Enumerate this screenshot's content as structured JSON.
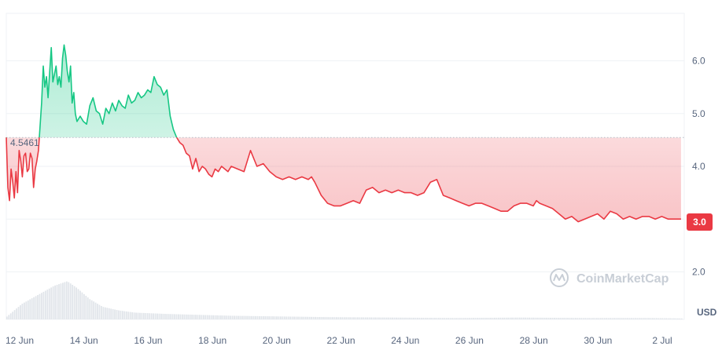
{
  "chart_data": {
    "type": "area",
    "currency_label": "USD",
    "baseline": 4.5461,
    "baseline_label": "4.5461",
    "last_price_label": "3.0",
    "watermark": "CoinMarketCap",
    "colors": {
      "up": "#16c784",
      "down": "#ea3943",
      "grid": "#eff2f5",
      "text": "#58667e",
      "volume": "#e1e5ea"
    },
    "yticks": [
      2.0,
      3.0,
      4.0,
      5.0,
      6.0
    ],
    "ytick_labels": [
      "2.0",
      "",
      "4.0",
      "5.0",
      "6.0"
    ],
    "ylim": [
      1.1,
      6.9
    ],
    "xlim": [
      0,
      21.1
    ],
    "xticks": [
      0,
      2,
      4,
      6,
      8,
      10,
      12,
      14,
      16,
      18,
      20
    ],
    "xtick_labels": [
      "12 Jun",
      "14 Jun",
      "16 Jun",
      "18 Jun",
      "20 Jun",
      "22 Jun",
      "24 Jun",
      "26 Jun",
      "28 Jun",
      "30 Jun",
      "2 Jul"
    ],
    "series": [
      {
        "x": [
          0,
          0.05,
          0.1,
          0.15,
          0.2,
          0.25,
          0.3,
          0.35,
          0.4,
          0.45,
          0.5,
          0.55,
          0.6,
          0.65,
          0.7,
          0.75,
          0.8,
          0.85,
          0.9,
          0.95,
          1.0,
          1.05,
          1.1,
          1.15,
          1.2,
          1.25,
          1.3,
          1.35,
          1.4,
          1.45,
          1.5,
          1.55,
          1.6,
          1.65,
          1.7,
          1.75,
          1.8,
          1.85,
          1.9,
          1.95,
          2.0,
          2.05,
          2.1,
          2.15,
          2.2,
          2.25,
          2.3,
          2.4,
          2.5,
          2.6,
          2.7,
          2.8,
          2.9,
          3.0,
          3.1,
          3.2,
          3.3,
          3.4,
          3.5,
          3.6,
          3.7,
          3.8,
          3.9,
          4.0,
          4.1,
          4.2,
          4.3,
          4.4,
          4.5,
          4.6,
          4.7,
          4.8,
          4.9,
          5.0,
          5.1,
          5.2,
          5.3,
          5.4,
          5.5,
          5.6,
          5.7,
          5.8,
          5.9,
          6.0,
          6.1,
          6.2,
          6.3,
          6.4,
          6.5,
          6.6,
          6.7,
          6.8,
          6.9,
          7.0,
          7.2,
          7.4,
          7.6,
          7.8,
          8.0,
          8.2,
          8.4,
          8.6,
          8.8,
          9.0,
          9.2,
          9.4,
          9.5,
          9.6,
          9.8,
          10.0,
          10.2,
          10.4,
          10.6,
          10.8,
          11.0,
          11.2,
          11.4,
          11.6,
          11.8,
          12.0,
          12.2,
          12.4,
          12.6,
          12.8,
          13.0,
          13.2,
          13.4,
          13.6,
          13.8,
          14.0,
          14.2,
          14.4,
          14.6,
          14.8,
          15.0,
          15.2,
          15.4,
          15.6,
          15.8,
          16.0,
          16.2,
          16.4,
          16.5,
          16.6,
          16.8,
          17.0,
          17.2,
          17.4,
          17.6,
          17.8,
          18.0,
          18.2,
          18.4,
          18.6,
          18.8,
          19.0,
          19.2,
          19.4,
          19.6,
          19.8,
          20.0,
          20.2,
          20.4,
          20.6,
          20.8,
          21.0
        ],
        "y": [
          4.55,
          3.6,
          3.35,
          3.95,
          3.7,
          3.4,
          3.9,
          3.5,
          4.3,
          4.1,
          3.8,
          4.2,
          4.25,
          3.9,
          3.95,
          4.25,
          4.15,
          3.6,
          3.95,
          4.1,
          4.3,
          4.75,
          5.2,
          5.9,
          5.5,
          5.7,
          5.3,
          5.8,
          6.25,
          5.6,
          5.75,
          5.9,
          5.55,
          5.7,
          5.5,
          6.05,
          6.3,
          6.1,
          5.8,
          5.6,
          5.9,
          5.2,
          5.4,
          5.0,
          4.85,
          4.9,
          4.95,
          4.85,
          4.8,
          5.15,
          5.3,
          5.05,
          5.0,
          4.8,
          5.1,
          5.0,
          5.2,
          5.05,
          5.25,
          5.15,
          5.1,
          5.35,
          5.2,
          5.25,
          5.4,
          5.3,
          5.35,
          5.45,
          5.4,
          5.7,
          5.55,
          5.5,
          5.35,
          5.45,
          4.95,
          4.7,
          4.55,
          4.45,
          4.4,
          4.25,
          4.2,
          3.95,
          4.15,
          3.9,
          4.0,
          3.95,
          3.85,
          3.8,
          3.95,
          3.9,
          4.0,
          3.95,
          3.9,
          4.0,
          3.95,
          3.9,
          4.3,
          4.0,
          4.05,
          3.9,
          3.8,
          3.75,
          3.8,
          3.75,
          3.8,
          3.75,
          3.8,
          3.7,
          3.45,
          3.3,
          3.25,
          3.25,
          3.3,
          3.35,
          3.3,
          3.55,
          3.6,
          3.5,
          3.55,
          3.5,
          3.55,
          3.5,
          3.5,
          3.45,
          3.5,
          3.7,
          3.75,
          3.45,
          3.4,
          3.35,
          3.3,
          3.25,
          3.3,
          3.3,
          3.25,
          3.2,
          3.15,
          3.15,
          3.25,
          3.3,
          3.3,
          3.25,
          3.35,
          3.3,
          3.25,
          3.2,
          3.1,
          3.0,
          3.05,
          2.95,
          3.0,
          3.05,
          3.1,
          3.0,
          3.15,
          3.1,
          3.0,
          3.05,
          3.0,
          3.05,
          3.05,
          3.0,
          3.05,
          3.0,
          3.0,
          3.0
        ]
      }
    ],
    "volume": {
      "x": [
        0,
        0.5,
        1.0,
        1.5,
        1.9,
        2.2,
        2.6,
        3.0,
        3.5,
        4.0,
        5.0,
        6.0,
        7.0,
        8.0,
        10.0,
        12.0,
        14.0,
        16.0,
        18.0,
        20.0,
        21.0
      ],
      "v": [
        0.05,
        0.35,
        0.55,
        0.75,
        0.85,
        0.7,
        0.45,
        0.28,
        0.2,
        0.15,
        0.12,
        0.1,
        0.08,
        0.07,
        0.05,
        0.04,
        0.03,
        0.04,
        0.03,
        0.03,
        0.02
      ],
      "max_height_price_units": 0.85
    }
  }
}
